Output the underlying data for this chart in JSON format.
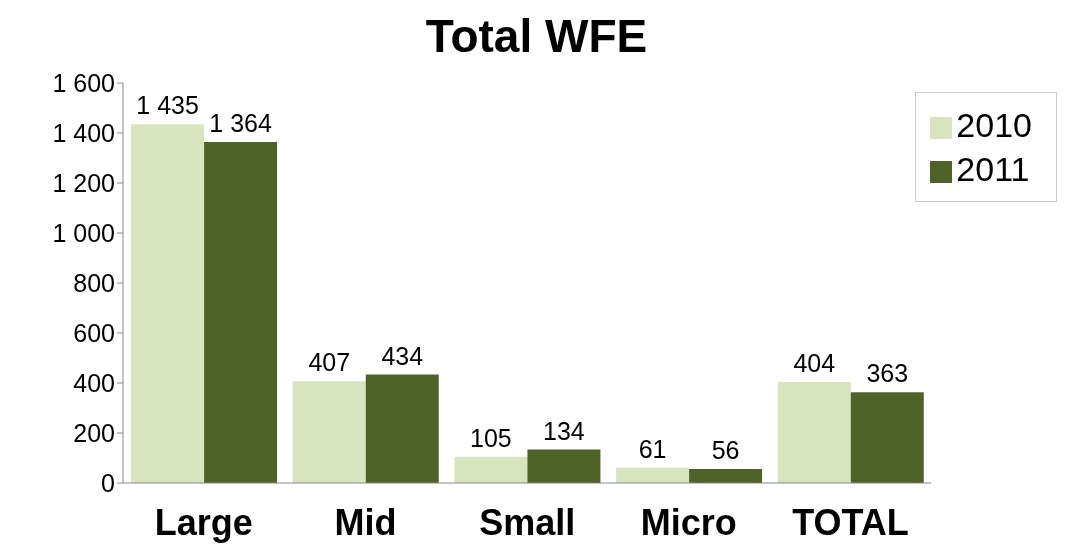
{
  "chart_data": {
    "type": "bar",
    "title": "Total WFE",
    "categories": [
      "Large",
      "Mid",
      "Small",
      "Micro",
      "TOTAL"
    ],
    "series": [
      {
        "name": "2010",
        "color": "#d7e4bd",
        "values": [
          1435,
          407,
          105,
          61,
          404
        ],
        "value_labels": [
          "1 435",
          "407",
          "105",
          "61",
          "404"
        ]
      },
      {
        "name": "2011",
        "color": "#4f6228",
        "values": [
          1364,
          434,
          134,
          56,
          363
        ],
        "value_labels": [
          "1 364",
          "434",
          "134",
          "56",
          "363"
        ]
      }
    ],
    "ylim": [
      0,
      1600
    ],
    "yticks": [
      0,
      {
        "value": 200,
        "label": "200"
      },
      {
        "value": 400,
        "label": "400"
      },
      {
        "value": 600,
        "label": "600"
      },
      {
        "value": 800,
        "label": "800"
      },
      {
        "value": 1000,
        "label": "1 000"
      },
      {
        "value": 1200,
        "label": "1 200"
      },
      {
        "value": 1400,
        "label": "1 400"
      },
      {
        "value": 1600,
        "label": "1 600"
      }
    ],
    "grid": false,
    "legend": "top right"
  }
}
